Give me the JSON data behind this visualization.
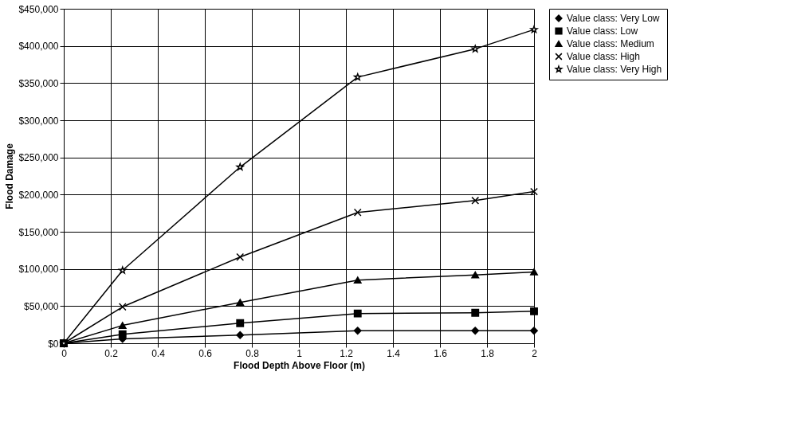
{
  "chart_data": {
    "type": "line",
    "xlabel": "Flood Depth Above Floor (m)",
    "ylabel": "Flood Damage",
    "x": [
      0,
      0.25,
      0.75,
      1.25,
      1.75,
      2
    ],
    "xlim": [
      0,
      2
    ],
    "xticks": [
      0,
      0.2,
      0.4,
      0.6,
      0.8,
      1,
      1.2,
      1.4,
      1.6,
      1.8,
      2
    ],
    "ylim": [
      0,
      450000
    ],
    "yticks": [
      {
        "value": 0,
        "label": "$0"
      },
      {
        "value": 50000,
        "label": "$50,000"
      },
      {
        "value": 100000,
        "label": "$100,000"
      },
      {
        "value": 150000,
        "label": "$150,000"
      },
      {
        "value": 200000,
        "label": "$200,000"
      },
      {
        "value": 250000,
        "label": "$250,000"
      },
      {
        "value": 300000,
        "label": "$300,000"
      },
      {
        "value": 350000,
        "label": "$350,000"
      },
      {
        "value": 400000,
        "label": "$400,000"
      },
      {
        "value": 450000,
        "label": "$450,000"
      }
    ],
    "grid": true,
    "legend": "right",
    "line_style": "solid",
    "series": [
      {
        "name": "Value class: Very Low",
        "color": "#000000",
        "marker": "diamond",
        "values": [
          0,
          6000,
          11000,
          17000,
          17000,
          17000
        ]
      },
      {
        "name": "Value class: Low",
        "color": "#000000",
        "marker": "square",
        "values": [
          0,
          12000,
          27000,
          40000,
          41000,
          43000
        ]
      },
      {
        "name": "Value class: Medium",
        "color": "#000000",
        "marker": "triangle",
        "values": [
          0,
          24000,
          55000,
          85000,
          92000,
          96000
        ]
      },
      {
        "name": "Value class: High",
        "color": "#000000",
        "marker": "cross",
        "values": [
          0,
          49000,
          116000,
          176000,
          192000,
          204000
        ]
      },
      {
        "name": "Value class: Very High",
        "color": "#000000",
        "marker": "star",
        "values": [
          0,
          98000,
          237000,
          358000,
          396000,
          422000
        ]
      }
    ]
  }
}
